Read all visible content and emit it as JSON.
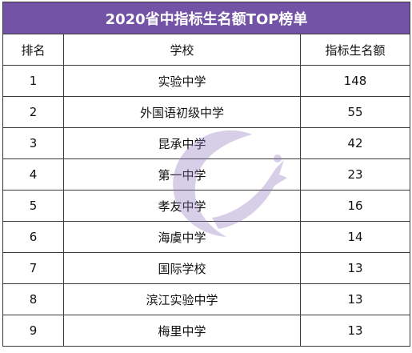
{
  "table": {
    "title": "2020省中指标生名额TOP榜单",
    "headers": [
      "排名",
      "学校",
      "指标生名额"
    ],
    "rows": [
      {
        "rank": "1",
        "school": "实验中学",
        "quota": "148"
      },
      {
        "rank": "2",
        "school": "外国语初级中学",
        "quota": "55"
      },
      {
        "rank": "3",
        "school": "昆承中学",
        "quota": "42"
      },
      {
        "rank": "4",
        "school": "第一中学",
        "quota": "23"
      },
      {
        "rank": "5",
        "school": "孝友中学",
        "quota": "16"
      },
      {
        "rank": "6",
        "school": "海虞中学",
        "quota": "14"
      },
      {
        "rank": "7",
        "school": "国际学校",
        "quota": "13"
      },
      {
        "rank": "8",
        "school": "滨江实验中学",
        "quota": "13"
      },
      {
        "rank": "9",
        "school": "梅里中学",
        "quota": "13"
      }
    ]
  },
  "colors": {
    "title_bg": "#7353a5",
    "watermark": "#8c78bb"
  },
  "watermark_icon": "crescent-fox-logo-icon"
}
